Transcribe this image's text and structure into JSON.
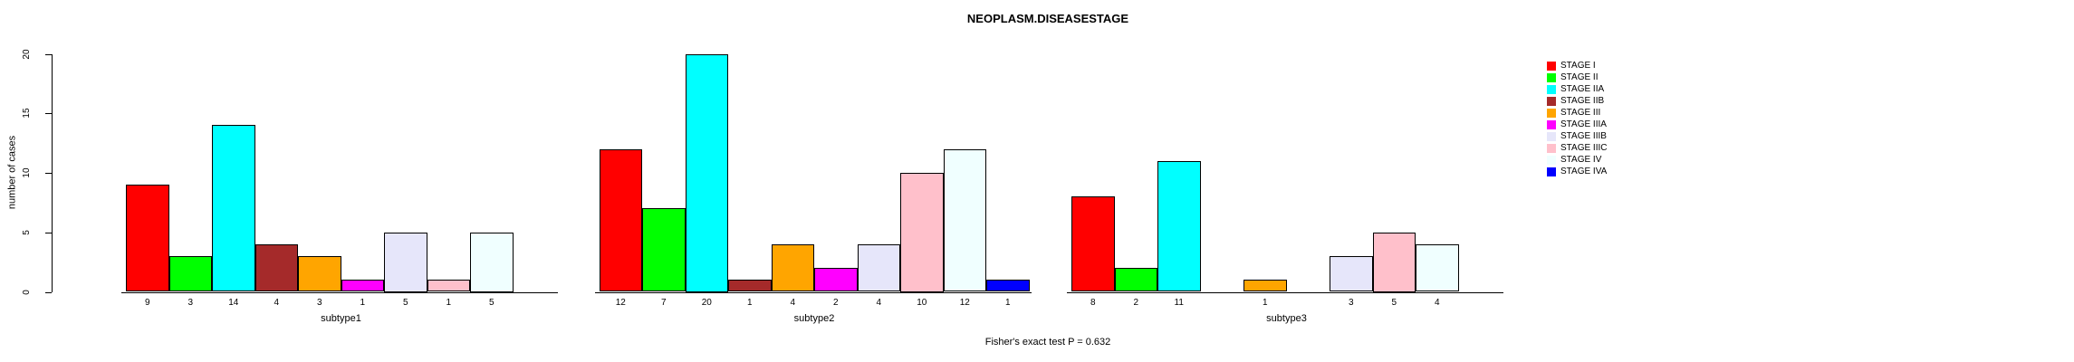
{
  "title": "NEOPLASM.DISEASESTAGE",
  "footer": "Fisher's exact test P = 0.632",
  "chart_data": {
    "type": "bar",
    "title": "NEOPLASM.DISEASESTAGE",
    "xlabel": "",
    "ylabel": "number of cases",
    "ylim": [
      0,
      20
    ],
    "yticks": [
      0,
      5,
      10,
      15,
      20
    ],
    "grid": false,
    "legend_position": "right-of-plot",
    "annotation": "Fisher's exact test P = 0.632",
    "legend": [
      {
        "label": "STAGE I",
        "color": "#FF0000"
      },
      {
        "label": "STAGE II",
        "color": "#00FF00"
      },
      {
        "label": "STAGE IIA",
        "color": "#00FFFF"
      },
      {
        "label": "STAGE IIB",
        "color": "#A52A2A"
      },
      {
        "label": "STAGE III",
        "color": "#FFA500"
      },
      {
        "label": "STAGE IIIA",
        "color": "#FF00FF"
      },
      {
        "label": "STAGE IIIB",
        "color": "#E6E6FA"
      },
      {
        "label": "STAGE IIIC",
        "color": "#FFC0CB"
      },
      {
        "label": "STAGE IV",
        "color": "#F0FFFF"
      },
      {
        "label": "STAGE IVA",
        "color": "#0000FF"
      }
    ],
    "groups": [
      {
        "label": "subtype1",
        "values": [
          9,
          3,
          14,
          4,
          3,
          1,
          5,
          1,
          5,
          null
        ]
      },
      {
        "label": "subtype2",
        "values": [
          12,
          7,
          20,
          1,
          4,
          2,
          4,
          10,
          12,
          1
        ]
      },
      {
        "label": "subtype3",
        "values": [
          8,
          2,
          11,
          null,
          1,
          null,
          3,
          5,
          4,
          null
        ]
      }
    ]
  }
}
